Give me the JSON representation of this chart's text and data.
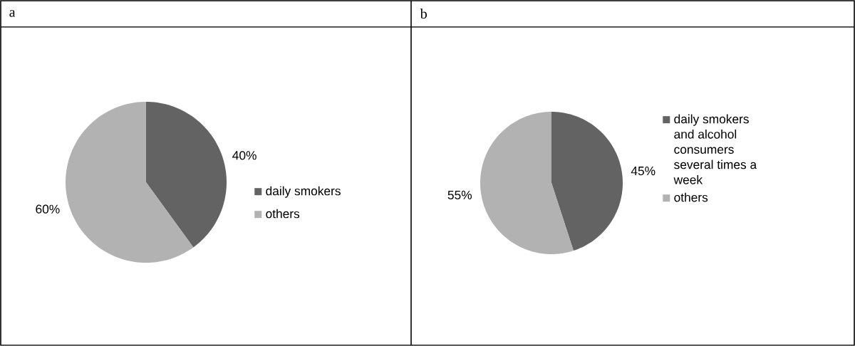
{
  "chart_data": [
    {
      "type": "pie",
      "title": "a",
      "categories": [
        "daily smokers",
        "others"
      ],
      "values": [
        40,
        60
      ],
      "colors": [
        "#636363",
        "#b2b2b2"
      ],
      "value_labels": [
        "40%",
        "60%"
      ],
      "legend": "right"
    },
    {
      "type": "pie",
      "title": "b",
      "categories": [
        "daily smokers and alcohol consumers several times a week",
        "others"
      ],
      "values": [
        45,
        55
      ],
      "colors": [
        "#636363",
        "#b2b2b2"
      ],
      "value_labels": [
        "45%",
        "55%"
      ],
      "legend": "right"
    }
  ]
}
